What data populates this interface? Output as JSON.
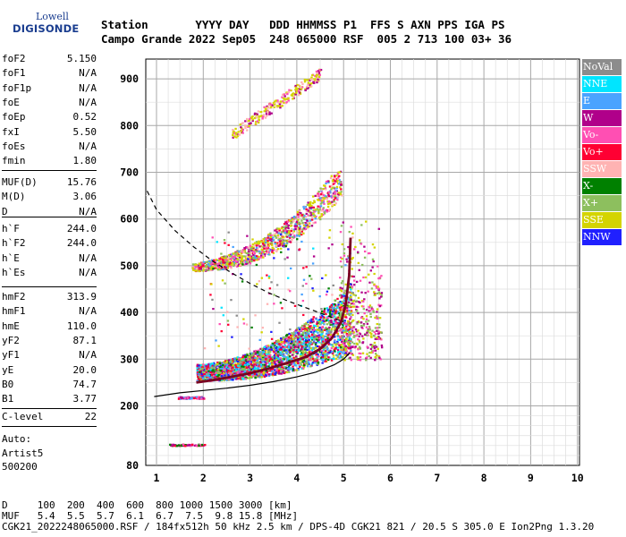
{
  "logo": {
    "top": "Lowell",
    "bottom": "DIGISONDE"
  },
  "header": {
    "line1": "Station       YYYY DAY   DDD HHMMSS P1  FFS S AXN PPS IGA PS",
    "line2": "Campo Grande 2022 Sep05  248 065000 RSF  005 2 713 100 03+ 36"
  },
  "params": {
    "group1": [
      {
        "name": "foF2",
        "value": "5.150"
      },
      {
        "name": "foF1",
        "value": "N/A"
      },
      {
        "name": "foF1p",
        "value": "N/A"
      },
      {
        "name": "foE",
        "value": "N/A"
      },
      {
        "name": "foEp",
        "value": "0.52"
      },
      {
        "name": "fxI",
        "value": "5.50"
      },
      {
        "name": "foEs",
        "value": "N/A"
      },
      {
        "name": "fmin",
        "value": "1.80"
      }
    ],
    "group2": [
      {
        "name": "MUF(D)",
        "value": "15.76"
      },
      {
        "name": "M(D)",
        "value": "3.06"
      },
      {
        "name": "D",
        "value": "N/A"
      }
    ],
    "group3": [
      {
        "name": "h`F",
        "value": "244.0"
      },
      {
        "name": "h`F2",
        "value": "244.0"
      },
      {
        "name": "h`E",
        "value": "N/A"
      },
      {
        "name": "h`Es",
        "value": "N/A"
      }
    ],
    "group4": [
      {
        "name": "hmF2",
        "value": "313.9"
      },
      {
        "name": "hmF1",
        "value": "N/A"
      },
      {
        "name": "hmE",
        "value": "110.0"
      },
      {
        "name": "yF2",
        "value": "87.1"
      },
      {
        "name": "yF1",
        "value": "N/A"
      },
      {
        "name": "yE",
        "value": "20.0"
      },
      {
        "name": "B0",
        "value": "74.7"
      },
      {
        "name": "B1",
        "value": "3.77"
      }
    ],
    "group5": [
      {
        "name": "C-level",
        "value": "22"
      }
    ],
    "auto": {
      "line1": "Auto:",
      "line2": "Artist5",
      "line3": "500200"
    }
  },
  "legend": [
    {
      "label": "NoVal",
      "color": "#8c8c8c"
    },
    {
      "label": "NNE",
      "color": "#00e5ff"
    },
    {
      "label": "E",
      "color": "#4aa3ff"
    },
    {
      "label": "W",
      "color": "#b0008a"
    },
    {
      "label": "Vo-",
      "color": "#ff4fb3"
    },
    {
      "label": "Vo+",
      "color": "#ff0033"
    },
    {
      "label": "SSW",
      "color": "#ffb3b3"
    },
    {
      "label": "X-",
      "color": "#008000"
    },
    {
      "label": "X+",
      "color": "#8dbf5e"
    },
    {
      "label": "SSE",
      "color": "#d4d400"
    },
    {
      "label": "NNW",
      "color": "#2020ff"
    }
  ],
  "footer": {
    "line1": "D     100  200  400  600  800 1000 1500 3000 [km]",
    "line2": "MUF   5.4  5.5  5.7  6.1  6.7  7.5  9.8 15.8 [MHz]",
    "line3": "CGK21_2022248065000.RSF / 184fx512h 50 kHz 2.5 km / DPS-4D CGK21 821 / 20.5 S 305.0 E Ion2Png 1.3.20"
  },
  "chart_data": {
    "type": "scatter",
    "title": "",
    "xlabel": "",
    "ylabel": "",
    "xlim": [
      0.8,
      10
    ],
    "ylim": [
      80,
      900
    ],
    "xticks": [
      1,
      2,
      3,
      4,
      5,
      6,
      7,
      8,
      9,
      10
    ],
    "yticks": [
      200,
      300,
      400,
      500,
      600,
      700,
      800,
      900
    ],
    "ytick_labels": [
      "200",
      "300",
      "400",
      "500",
      "600",
      "700",
      "800",
      "900"
    ],
    "y_bottom_label": "80",
    "grid": true,
    "legend_placement": "right",
    "series": [
      {
        "name": "trace-O",
        "kind": "line",
        "color": "#7a0022",
        "x": [
          1.85,
          2.2,
          2.6,
          3.0,
          3.4,
          3.8,
          4.2,
          4.5,
          4.75,
          4.95,
          5.05,
          5.12,
          5.15
        ],
        "y": [
          250,
          255,
          262,
          270,
          280,
          292,
          305,
          322,
          345,
          380,
          420,
          480,
          560
        ]
      },
      {
        "name": "profile",
        "kind": "line",
        "color": "#000000",
        "x": [
          0.95,
          1.5,
          2.0,
          2.5,
          3.0,
          3.5,
          4.0,
          4.4,
          4.8,
          5.0,
          5.1,
          5.13
        ],
        "y": [
          220,
          228,
          233,
          238,
          244,
          252,
          262,
          272,
          288,
          300,
          310,
          314
        ]
      },
      {
        "name": "MUF-curve",
        "kind": "dashed",
        "color": "#000000",
        "x": [
          0.8,
          1.0,
          1.4,
          1.8,
          2.2,
          2.6,
          3.0,
          3.4,
          3.8,
          4.2,
          4.6,
          5.0
        ],
        "y": [
          660,
          620,
          575,
          540,
          510,
          485,
          462,
          442,
          425,
          410,
          395,
          380
        ]
      }
    ]
  }
}
